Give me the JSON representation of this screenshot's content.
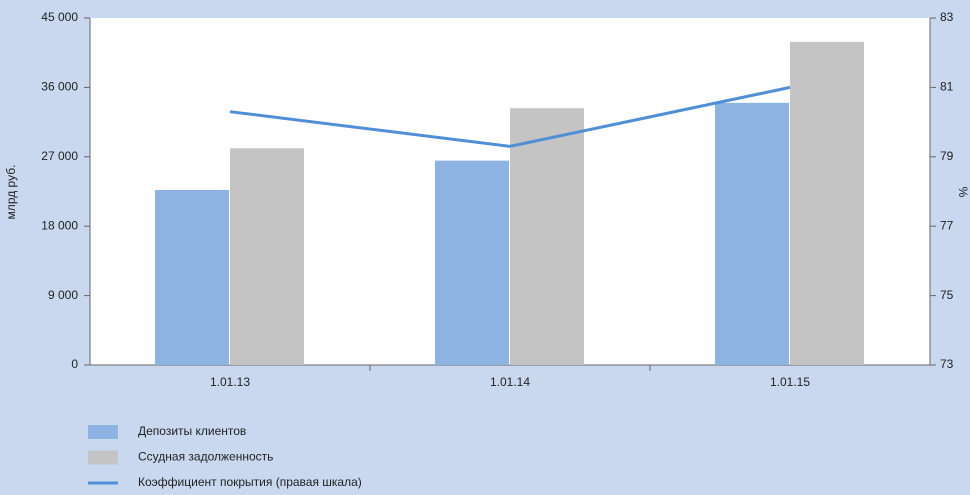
{
  "chart_data": {
    "type": "bar_line",
    "categories": [
      "1.01.13",
      "1.01.14",
      "1.01.15"
    ],
    "series": [
      {
        "name": "Депозиты клиентов",
        "color": "#8db3e2",
        "values": [
          22700,
          26500,
          34000
        ]
      },
      {
        "name": "Ссудная задолженность",
        "color": "#c4c4c4",
        "values": [
          28100,
          33300,
          41900
        ]
      },
      {
        "name": "Коэффициент покрытия (правая шкала)",
        "color": "#4f8fd6",
        "values": [
          80.3,
          79.3,
          81.0
        ],
        "axis": "y2"
      }
    ],
    "ylabel": "млрд руб.",
    "y2label": "%",
    "ylim": [
      0,
      45000
    ],
    "yticks": [
      0,
      {
        "value": 9000,
        "label": "9 000"
      },
      {
        "value": 18000,
        "label": "18 000"
      },
      {
        "value": 27000,
        "label": "27 000"
      },
      {
        "value": 36000,
        "label": "36 000"
      },
      {
        "value": 45000,
        "label": "45 000"
      }
    ],
    "y2lim": [
      73,
      83
    ],
    "y2ticks": [
      73,
      75,
      77,
      79,
      81,
      83
    ],
    "grid": false
  }
}
